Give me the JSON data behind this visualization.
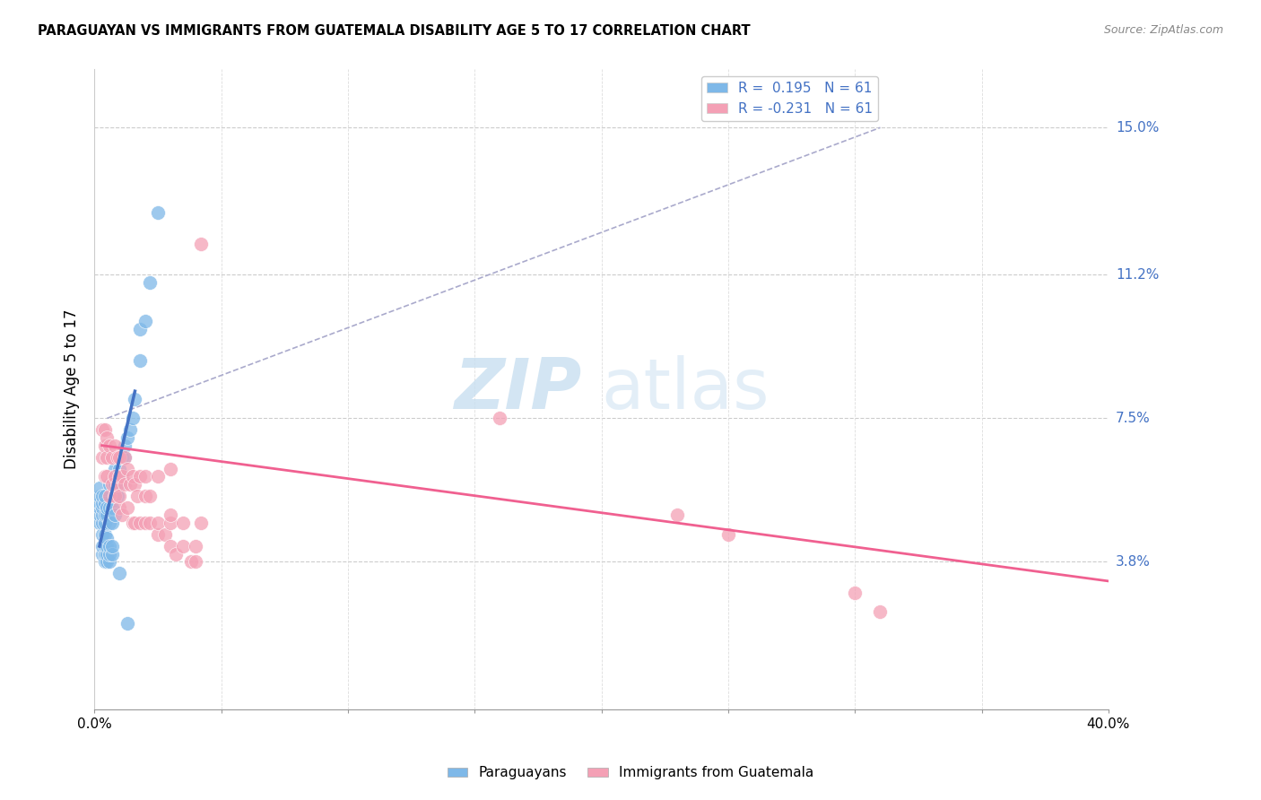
{
  "title": "PARAGUAYAN VS IMMIGRANTS FROM GUATEMALA DISABILITY AGE 5 TO 17 CORRELATION CHART",
  "source": "Source: ZipAtlas.com",
  "ylabel": "Disability Age 5 to 17",
  "ytick_labels": [
    "15.0%",
    "11.2%",
    "7.5%",
    "3.8%"
  ],
  "ytick_values": [
    0.15,
    0.112,
    0.075,
    0.038
  ],
  "xlim": [
    0.0,
    0.4
  ],
  "ylim": [
    0.0,
    0.165
  ],
  "legend_label1": "Paraguayans",
  "legend_label2": "Immigrants from Guatemala",
  "color_blue": "#7eb8e8",
  "color_pink": "#f4a0b5",
  "line_blue": "#4472c4",
  "line_pink": "#f06090",
  "dashed_line_color": "#aaaacc",
  "blue_scatter_x": [
    0.002,
    0.002,
    0.002,
    0.002,
    0.002,
    0.002,
    0.003,
    0.003,
    0.003,
    0.003,
    0.003,
    0.003,
    0.003,
    0.003,
    0.004,
    0.004,
    0.004,
    0.004,
    0.004,
    0.004,
    0.004,
    0.004,
    0.005,
    0.005,
    0.005,
    0.005,
    0.005,
    0.005,
    0.006,
    0.006,
    0.006,
    0.006,
    0.006,
    0.006,
    0.007,
    0.007,
    0.007,
    0.007,
    0.008,
    0.008,
    0.008,
    0.008,
    0.009,
    0.009,
    0.01,
    0.01,
    0.011,
    0.011,
    0.012,
    0.012,
    0.013,
    0.014,
    0.015,
    0.016,
    0.018,
    0.018,
    0.02,
    0.022,
    0.025,
    0.01,
    0.013
  ],
  "blue_scatter_y": [
    0.048,
    0.05,
    0.052,
    0.053,
    0.055,
    0.057,
    0.04,
    0.042,
    0.045,
    0.048,
    0.05,
    0.052,
    0.053,
    0.055,
    0.038,
    0.04,
    0.042,
    0.045,
    0.048,
    0.05,
    0.053,
    0.055,
    0.038,
    0.04,
    0.042,
    0.044,
    0.05,
    0.052,
    0.038,
    0.04,
    0.042,
    0.048,
    0.052,
    0.058,
    0.04,
    0.042,
    0.048,
    0.052,
    0.05,
    0.055,
    0.058,
    0.062,
    0.055,
    0.06,
    0.058,
    0.062,
    0.06,
    0.065,
    0.065,
    0.068,
    0.07,
    0.072,
    0.075,
    0.08,
    0.09,
    0.098,
    0.1,
    0.11,
    0.128,
    0.035,
    0.022
  ],
  "pink_scatter_x": [
    0.003,
    0.003,
    0.004,
    0.004,
    0.004,
    0.005,
    0.005,
    0.005,
    0.006,
    0.006,
    0.007,
    0.007,
    0.008,
    0.008,
    0.008,
    0.009,
    0.009,
    0.01,
    0.01,
    0.01,
    0.01,
    0.011,
    0.011,
    0.012,
    0.012,
    0.013,
    0.013,
    0.014,
    0.015,
    0.015,
    0.016,
    0.016,
    0.017,
    0.018,
    0.018,
    0.02,
    0.02,
    0.02,
    0.022,
    0.022,
    0.025,
    0.025,
    0.025,
    0.028,
    0.03,
    0.03,
    0.03,
    0.03,
    0.032,
    0.035,
    0.035,
    0.038,
    0.04,
    0.04,
    0.042,
    0.042,
    0.16,
    0.23,
    0.25,
    0.3,
    0.31
  ],
  "pink_scatter_y": [
    0.065,
    0.072,
    0.06,
    0.068,
    0.072,
    0.06,
    0.065,
    0.07,
    0.055,
    0.068,
    0.058,
    0.065,
    0.055,
    0.06,
    0.068,
    0.058,
    0.065,
    0.052,
    0.055,
    0.06,
    0.065,
    0.05,
    0.06,
    0.058,
    0.065,
    0.052,
    0.062,
    0.058,
    0.048,
    0.06,
    0.048,
    0.058,
    0.055,
    0.048,
    0.06,
    0.048,
    0.055,
    0.06,
    0.048,
    0.055,
    0.045,
    0.048,
    0.06,
    0.045,
    0.042,
    0.048,
    0.05,
    0.062,
    0.04,
    0.042,
    0.048,
    0.038,
    0.038,
    0.042,
    0.048,
    0.12,
    0.075,
    0.05,
    0.045,
    0.03,
    0.025
  ],
  "blue_trend_x": [
    0.002,
    0.016
  ],
  "blue_trend_y": [
    0.042,
    0.082
  ],
  "pink_trend_x": [
    0.003,
    0.4
  ],
  "pink_trend_y": [
    0.068,
    0.033
  ],
  "dashed_trend_x": [
    0.005,
    0.31
  ],
  "dashed_trend_y": [
    0.075,
    0.15
  ]
}
